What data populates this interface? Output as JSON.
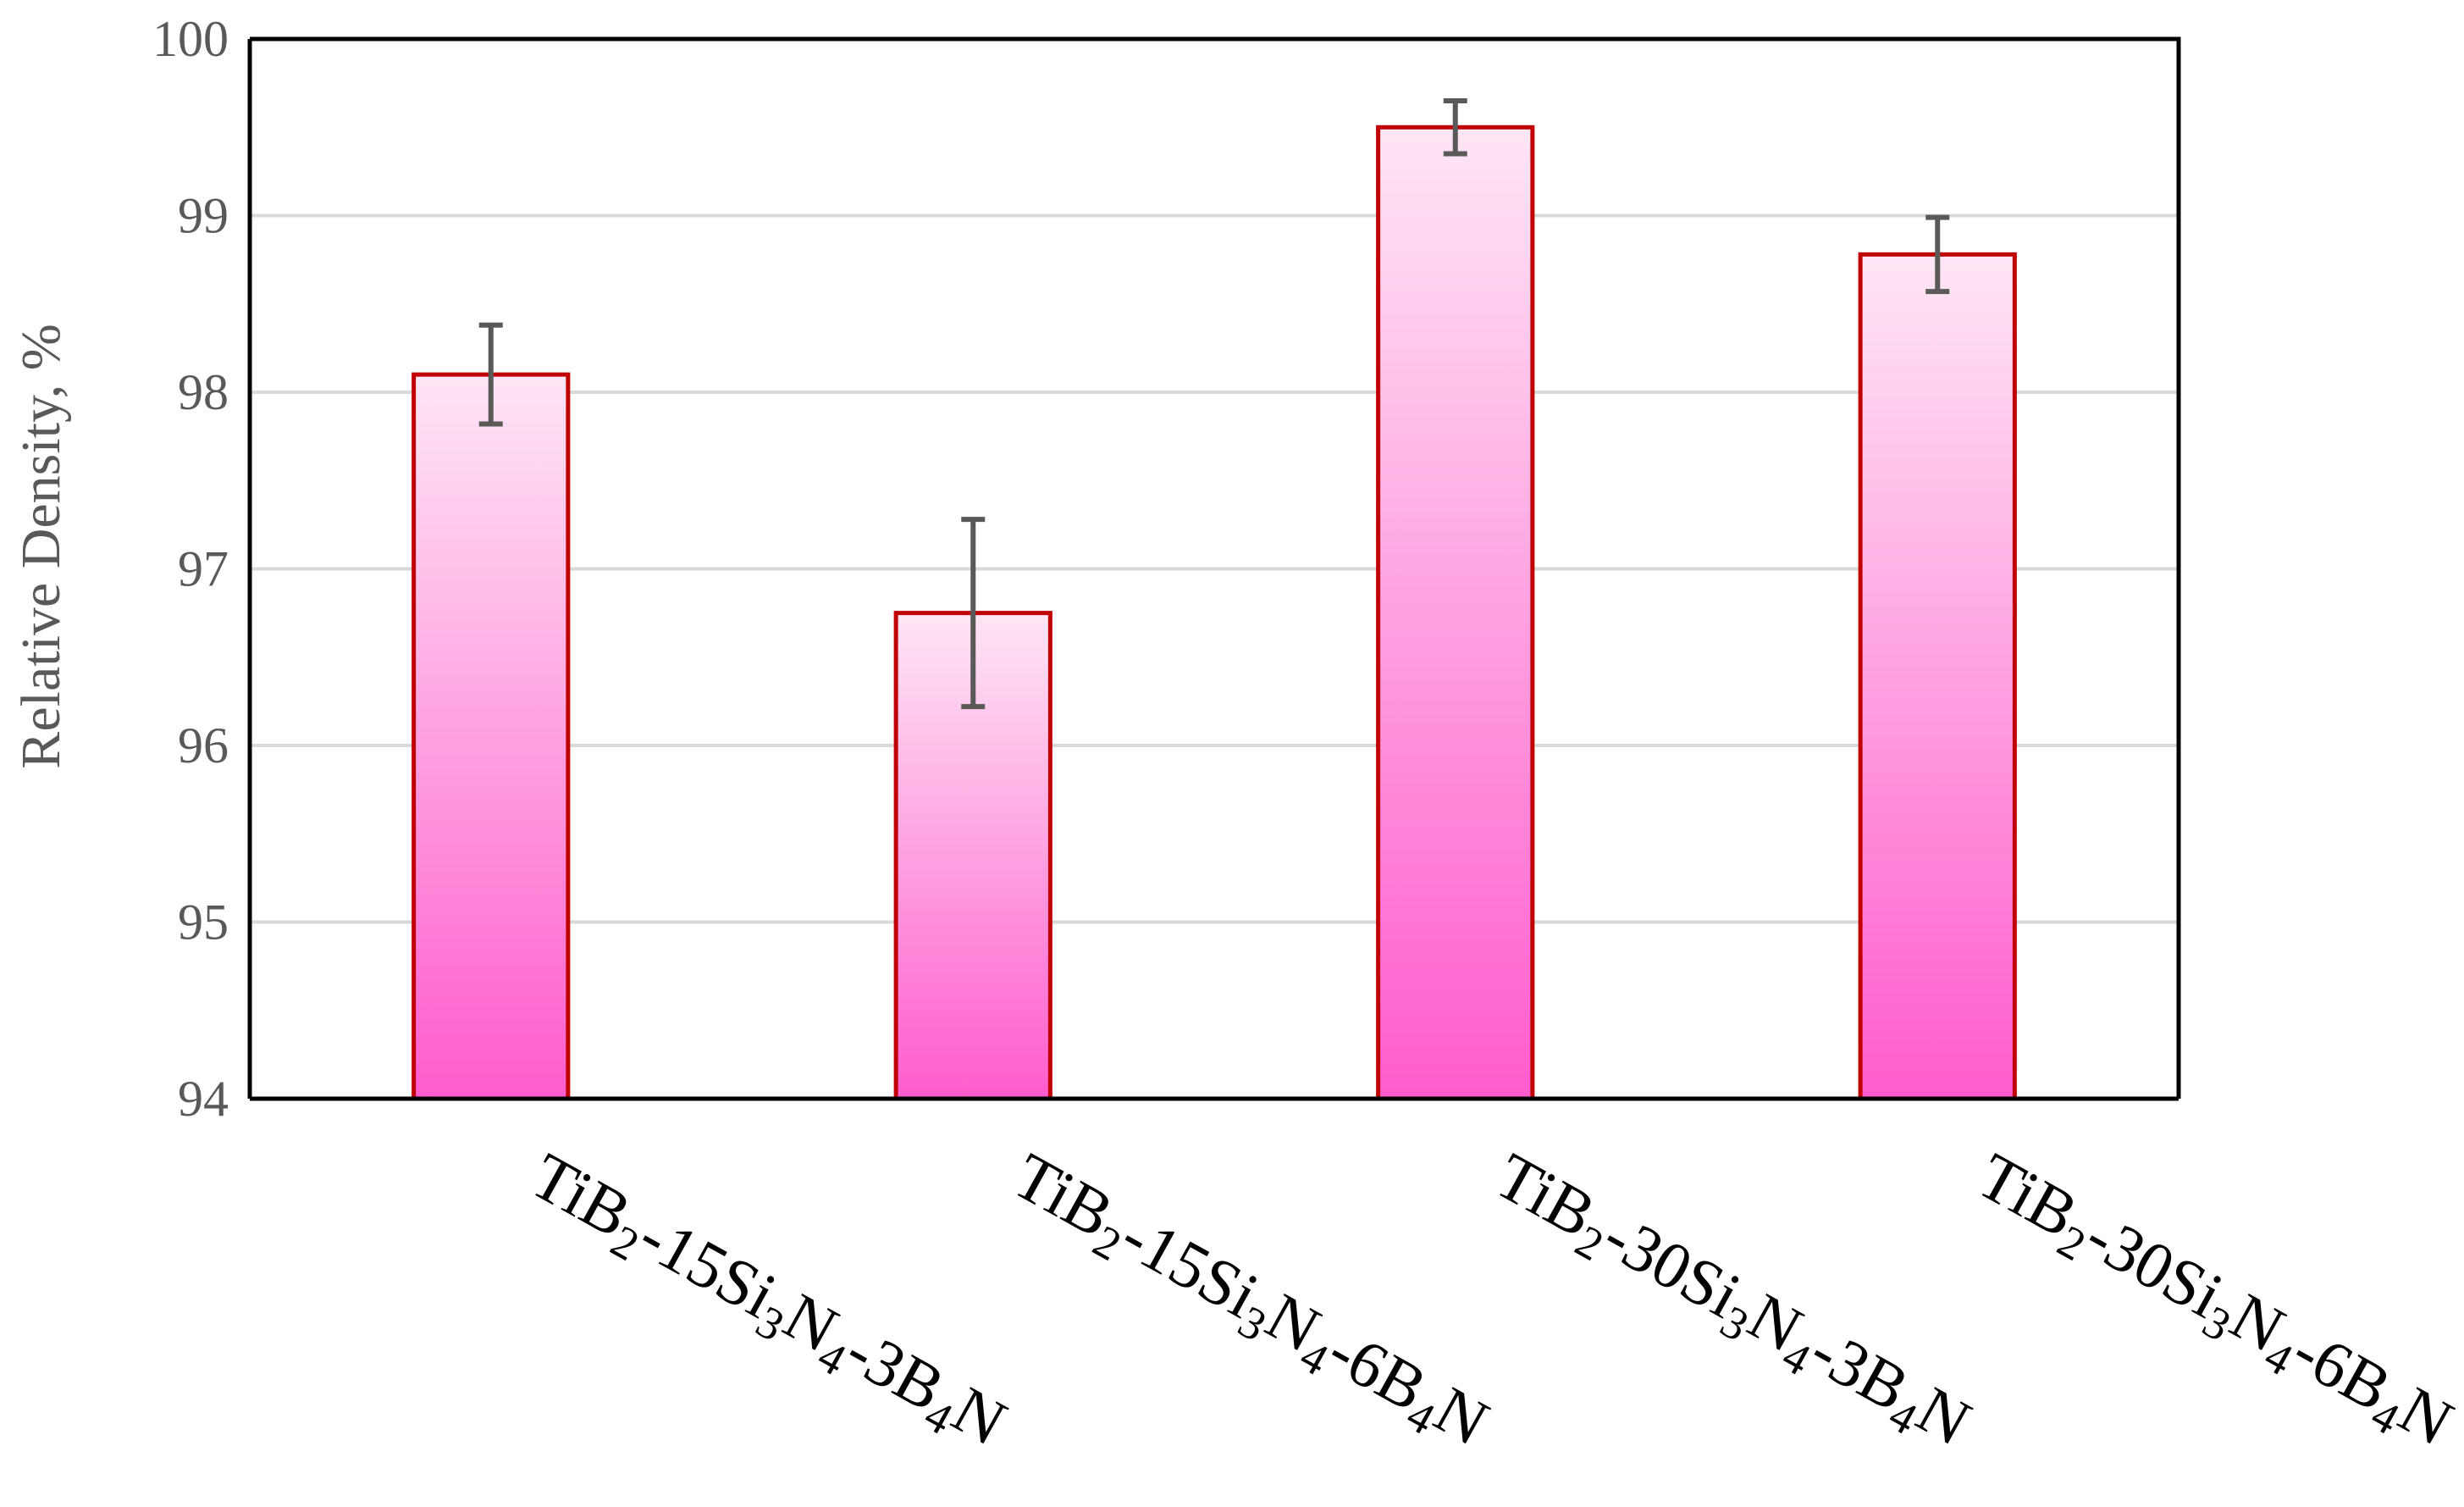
{
  "chart_data": {
    "type": "bar",
    "title": "",
    "xlabel": "",
    "ylabel": "Relative Density, %",
    "ylim": [
      94,
      100
    ],
    "yticks": [
      94,
      95,
      96,
      97,
      98,
      99,
      100
    ],
    "grid": true,
    "legend": "none",
    "categories": [
      [
        {
          "t": "TiB",
          "s": "n"
        },
        {
          "t": "2",
          "s": "sub"
        },
        {
          "t": "-15Si",
          "s": "n"
        },
        {
          "t": "3",
          "s": "sub"
        },
        {
          "t": "N",
          "s": "n"
        },
        {
          "t": "4",
          "s": "sub"
        },
        {
          "t": "-3B",
          "s": "n"
        },
        {
          "t": "4",
          "s": "sub"
        },
        {
          "t": "N",
          "s": "n"
        }
      ],
      [
        {
          "t": "TiB",
          "s": "n"
        },
        {
          "t": "2",
          "s": "sub"
        },
        {
          "t": "-15Si",
          "s": "n"
        },
        {
          "t": "3",
          "s": "sub"
        },
        {
          "t": "N",
          "s": "n"
        },
        {
          "t": "4",
          "s": "sub"
        },
        {
          "t": "-6B",
          "s": "n"
        },
        {
          "t": "4",
          "s": "sub"
        },
        {
          "t": "N",
          "s": "n"
        }
      ],
      [
        {
          "t": "TiB",
          "s": "n"
        },
        {
          "t": "2",
          "s": "sub"
        },
        {
          "t": "-30Si",
          "s": "n"
        },
        {
          "t": "3",
          "s": "sub"
        },
        {
          "t": "N",
          "s": "n"
        },
        {
          "t": "4",
          "s": "sub"
        },
        {
          "t": "-3B",
          "s": "n"
        },
        {
          "t": "4",
          "s": "sub"
        },
        {
          "t": "N",
          "s": "n"
        }
      ],
      [
        {
          "t": "TiB",
          "s": "n"
        },
        {
          "t": "2",
          "s": "sub"
        },
        {
          "t": "-30Si",
          "s": "n"
        },
        {
          "t": "3",
          "s": "sub"
        },
        {
          "t": "N",
          "s": "n"
        },
        {
          "t": "4",
          "s": "sub"
        },
        {
          "t": "-6B",
          "s": "n"
        },
        {
          "t": "4",
          "s": "sub"
        },
        {
          "t": "N",
          "s": "n"
        }
      ]
    ],
    "values": [
      98.1,
      96.75,
      99.5,
      98.78
    ],
    "errors": [
      0.28,
      0.53,
      0.15,
      0.21
    ],
    "colors": {
      "bar_top": "#ffe6f5",
      "bar_bottom": "#ff5ccd",
      "bar_outline": "#c00000",
      "error_bar": "#595959",
      "gridline": "#d9d9d9",
      "frame": "#000000",
      "axis_text": "#595959"
    }
  }
}
